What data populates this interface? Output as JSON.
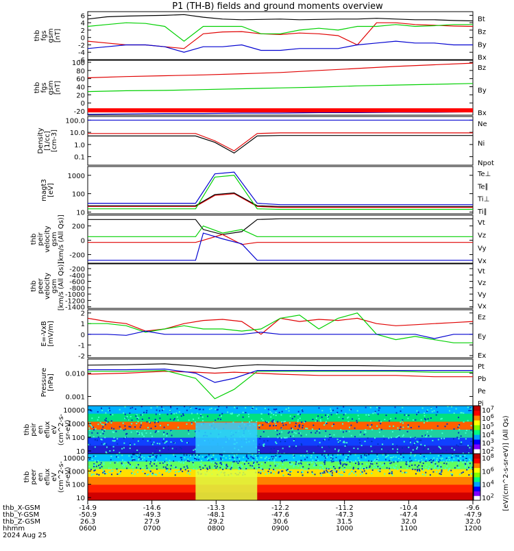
{
  "title": "P1 (TH-B) fields and ground moments overview",
  "colors": {
    "black": "#000000",
    "red": "#e00000",
    "green": "#00d000",
    "blue": "#0000d0"
  },
  "chart_data": [
    {
      "id": "fgs",
      "type": "line",
      "ylabel": [
        "thb",
        "fgs",
        "gsm",
        "[nT]"
      ],
      "yticks": [
        "6",
        "4",
        "2",
        "0",
        "-2",
        "-4",
        "-6"
      ],
      "ylim": [
        -6,
        7
      ],
      "scale": "linear",
      "x": [
        0,
        0.05,
        0.1,
        0.15,
        0.2,
        0.25,
        0.3,
        0.35,
        0.4,
        0.45,
        0.5,
        0.55,
        0.6,
        0.65,
        0.7,
        0.75,
        0.8,
        0.85,
        0.9,
        0.95,
        1
      ],
      "series": [
        {
          "name": "Bt",
          "color": "black",
          "values": [
            5.0,
            5.6,
            5.8,
            5.9,
            6.0,
            6.2,
            5.5,
            5.0,
            4.8,
            4.9,
            5.0,
            4.8,
            4.9,
            5.0,
            5.0,
            5.2,
            5.0,
            4.8,
            4.8,
            4.6,
            4.5
          ]
        },
        {
          "name": "Bz",
          "color": "red",
          "values": [
            -1.0,
            -1.5,
            -2.0,
            -2.0,
            -2.5,
            -3.0,
            1.0,
            1.5,
            1.6,
            1.0,
            0.8,
            1.2,
            1.0,
            0.5,
            -2.0,
            4.0,
            4.0,
            3.5,
            3.3,
            3.1,
            3.0
          ]
        },
        {
          "name": "By",
          "color": "green",
          "values": [
            3.0,
            3.5,
            4.0,
            3.8,
            3.0,
            -1.0,
            3.0,
            3.0,
            3.0,
            1.0,
            1.0,
            2.0,
            2.5,
            2.0,
            3.0,
            3.0,
            3.5,
            3.0,
            3.2,
            3.5,
            3.5
          ]
        },
        {
          "name": "Bx",
          "color": "blue",
          "values": [
            -3.0,
            -2.5,
            -2.0,
            -2.0,
            -2.5,
            -4.0,
            -2.5,
            -2.5,
            -2.0,
            -3.5,
            -3.5,
            -3.0,
            -3.0,
            -3.0,
            -2.0,
            -1.5,
            -1.0,
            -1.5,
            -1.5,
            -2.0,
            -2.0
          ]
        }
      ]
    },
    {
      "id": "fgs-big",
      "type": "line",
      "ylabel": [
        "thb",
        "fgs",
        "gsm",
        "[nT]"
      ],
      "yticks": [
        "100",
        "80",
        "60",
        "40",
        "20",
        "0",
        "-20"
      ],
      "ylim": [
        -30,
        105
      ],
      "scale": "linear",
      "x": [
        0,
        0.1,
        0.2,
        0.3,
        0.4,
        0.5,
        0.6,
        0.7,
        0.8,
        0.9,
        1
      ],
      "series": [
        {
          "name": "Bz",
          "color": "red",
          "values": [
            62,
            65,
            67,
            69,
            72,
            75,
            80,
            85,
            90,
            94,
            98
          ]
        },
        {
          "name": "By",
          "color": "green",
          "values": [
            28,
            30,
            31,
            33,
            35,
            37,
            39,
            42,
            44,
            46,
            48
          ]
        },
        {
          "name": "Bx",
          "color": "blue",
          "values": [
            -28,
            -27,
            -26,
            -26,
            -25,
            -25,
            -24,
            -24,
            -23,
            -23,
            -22
          ]
        }
      ]
    },
    {
      "id": "density",
      "type": "line",
      "ylabel": [
        "Density",
        "[1/cc]",
        "[cm-3]"
      ],
      "yticks": [
        "100.0",
        "10.0",
        "1.0",
        "0.1"
      ],
      "ylim": [
        0.02,
        200
      ],
      "scale": "log",
      "x": [
        0,
        0.1,
        0.2,
        0.28,
        0.33,
        0.38,
        0.44,
        0.5,
        0.6,
        0.7,
        0.8,
        0.9,
        1
      ],
      "series": [
        {
          "name": "Ne",
          "color": "red",
          "values": [
            8,
            8,
            8,
            8,
            2,
            0.3,
            8,
            9,
            9,
            9,
            9,
            9,
            9
          ]
        },
        {
          "name": "Ni",
          "color": "black",
          "values": [
            5,
            5,
            5,
            5,
            1.5,
            0.2,
            5,
            5.5,
            5.5,
            5.5,
            5.5,
            5.5,
            5.5
          ]
        },
        {
          "name": "Npot",
          "color": "blue",
          "values": [
            100,
            100,
            100,
            100,
            100,
            100,
            100,
            100,
            100,
            100,
            100,
            100,
            100
          ]
        }
      ]
    },
    {
      "id": "temperature",
      "type": "line",
      "ylabel": [
        "magt3",
        "[eV]"
      ],
      "yticks": [
        "1000",
        "100",
        "10"
      ],
      "ylim": [
        8,
        3000
      ],
      "scale": "log",
      "x": [
        0,
        0.1,
        0.2,
        0.28,
        0.33,
        0.38,
        0.44,
        0.5,
        0.6,
        0.7,
        0.8,
        0.9,
        1
      ],
      "series": [
        {
          "name": "Te⊥",
          "color": "red",
          "values": [
            20,
            20,
            20,
            20,
            80,
            100,
            20,
            18,
            18,
            18,
            18,
            18,
            18
          ]
        },
        {
          "name": "Te∥",
          "color": "black",
          "values": [
            22,
            22,
            22,
            22,
            90,
            110,
            22,
            20,
            20,
            20,
            20,
            20,
            20
          ]
        },
        {
          "name": "Ti⊥",
          "color": "blue",
          "values": [
            30,
            30,
            30,
            30,
            1200,
            1500,
            30,
            25,
            25,
            25,
            25,
            25,
            25
          ]
        },
        {
          "name": "Ti∥",
          "color": "green",
          "values": [
            15,
            15,
            15,
            15,
            800,
            1000,
            15,
            14,
            14,
            14,
            14,
            14,
            14
          ]
        }
      ]
    },
    {
      "id": "peir-velocity",
      "type": "line",
      "ylabel": [
        "thb",
        "peir",
        "velocity",
        "gsm",
        "[km/s (All Qs)]"
      ],
      "yticks": [
        "200",
        "0",
        "-200"
      ],
      "ylim": [
        -320,
        350
      ],
      "scale": "linear",
      "x": [
        0,
        0.1,
        0.2,
        0.28,
        0.3,
        0.35,
        0.4,
        0.44,
        0.5,
        0.6,
        0.7,
        0.8,
        0.9,
        1
      ],
      "series": [
        {
          "name": "Vt",
          "color": "black",
          "values": [
            290,
            290,
            290,
            290,
            150,
            80,
            120,
            290,
            300,
            300,
            300,
            300,
            300,
            300
          ]
        },
        {
          "name": "Vz",
          "color": "red",
          "values": [
            -30,
            -30,
            -30,
            -30,
            0,
            80,
            -60,
            -30,
            -30,
            -30,
            -30,
            -30,
            -30,
            -30
          ]
        },
        {
          "name": "Vy",
          "color": "green",
          "values": [
            50,
            50,
            50,
            50,
            200,
            100,
            150,
            50,
            50,
            50,
            50,
            50,
            50,
            50
          ]
        },
        {
          "name": "Vx",
          "color": "blue",
          "values": [
            -280,
            -280,
            -280,
            -280,
            100,
            20,
            -50,
            -280,
            -280,
            -280,
            -280,
            -280,
            -280,
            -280
          ]
        }
      ]
    },
    {
      "id": "peer-velocity",
      "type": "line",
      "ylabel": [
        "thb",
        "peer",
        "velocity",
        "gsm",
        "[km/s (All Qs)]"
      ],
      "yticks": [
        "-200",
        "-400",
        "-600",
        "-800",
        "-1000",
        "-1200",
        "-1400"
      ],
      "ylim": [
        -1450,
        -50
      ],
      "scale": "linear",
      "x": [],
      "series": [
        {
          "name": "Vt",
          "color": "black",
          "values": []
        },
        {
          "name": "Vz",
          "color": "red",
          "values": []
        },
        {
          "name": "Vy",
          "color": "green",
          "values": []
        },
        {
          "name": "Vx",
          "color": "blue",
          "values": []
        }
      ]
    },
    {
      "id": "efield",
      "type": "line",
      "ylabel": [
        "E=-VxB",
        "[mV/m]"
      ],
      "yticks": [
        "2",
        "1",
        "0",
        "-1",
        "-2"
      ],
      "ylim": [
        -2.2,
        2.3
      ],
      "scale": "linear",
      "x": [
        0,
        0.05,
        0.1,
        0.15,
        0.2,
        0.25,
        0.3,
        0.35,
        0.4,
        0.45,
        0.5,
        0.55,
        0.6,
        0.65,
        0.7,
        0.75,
        0.8,
        0.85,
        0.9,
        0.95,
        1
      ],
      "series": [
        {
          "name": "Ez",
          "color": "red",
          "values": [
            1.5,
            1.2,
            1.0,
            0.3,
            0.5,
            1.0,
            1.3,
            1.4,
            1.2,
            0.0,
            1.5,
            1.2,
            1.4,
            1.3,
            1.5,
            1.0,
            0.8,
            0.9,
            1.0,
            1.1,
            1.2
          ]
        },
        {
          "name": "Ey",
          "color": "green",
          "values": [
            1.0,
            1.0,
            0.8,
            0.2,
            0.5,
            0.8,
            0.5,
            0.5,
            0.3,
            0.5,
            1.5,
            1.8,
            0.5,
            1.5,
            2.0,
            0.0,
            -0.5,
            -0.2,
            -0.5,
            -0.8,
            -0.8
          ]
        },
        {
          "name": "Ex",
          "color": "blue",
          "values": [
            0.0,
            0.0,
            -0.1,
            0.3,
            0.0,
            0.0,
            0.0,
            0.0,
            0.0,
            0.2,
            0.0,
            0.0,
            0.0,
            0.0,
            0.0,
            0.0,
            0.0,
            0.0,
            -0.4,
            0.0,
            0.0
          ]
        }
      ]
    },
    {
      "id": "pressure",
      "type": "line",
      "ylabel": [
        "Pressure",
        "[nPa]"
      ],
      "yticks": [
        "0.010",
        "0.001"
      ],
      "ylim": [
        0.0004,
        0.04
      ],
      "scale": "log",
      "x": [
        0,
        0.1,
        0.2,
        0.28,
        0.33,
        0.38,
        0.44,
        0.5,
        0.6,
        0.7,
        0.8,
        0.9,
        1
      ],
      "series": [
        {
          "name": "Pt",
          "color": "black",
          "values": [
            0.022,
            0.023,
            0.025,
            0.02,
            0.016,
            0.02,
            0.023,
            0.022,
            0.021,
            0.021,
            0.02,
            0.02,
            0.02
          ]
        },
        {
          "name": "Pb",
          "color": "red",
          "values": [
            0.009,
            0.01,
            0.012,
            0.011,
            0.01,
            0.011,
            0.01,
            0.009,
            0.008,
            0.008,
            0.008,
            0.007,
            0.007
          ]
        },
        {
          "name": "Pe",
          "color": "green",
          "values": [
            0.012,
            0.012,
            0.013,
            0.006,
            0.0008,
            0.002,
            0.012,
            0.012,
            0.012,
            0.012,
            0.012,
            0.011,
            0.011
          ]
        },
        {
          "name": "Pi",
          "color": "blue",
          "values": [
            0.014,
            0.014,
            0.015,
            0.01,
            0.004,
            0.006,
            0.013,
            0.013,
            0.013,
            0.013,
            0.013,
            0.013,
            0.013
          ]
        }
      ]
    },
    {
      "id": "peir-spectrogram",
      "type": "heatmap",
      "ylabel": [
        "thb",
        "peir",
        "en",
        "eflux",
        "eV",
        "(cm^2-s-",
        "sr-eV)"
      ],
      "yticks": [
        "10000",
        "1000",
        "100",
        "10"
      ],
      "colorbar_ticks": [
        "10^7",
        "10^6",
        "10^5",
        "10^4",
        "10^3",
        "10^2"
      ]
    },
    {
      "id": "peer-spectrogram",
      "type": "heatmap",
      "ylabel": [
        "thb",
        "peer",
        "en",
        "eflux",
        "eV",
        "(cm^2-s-",
        "sr-eV)"
      ],
      "yticks": [
        "10000",
        "1000",
        "100",
        "10"
      ],
      "colorbar_ticks": [
        "10^8",
        "10^6",
        "10^4",
        "10^2"
      ],
      "colorbar_label": "[eV/(cm^2-s-sr-eV)] (All Qs)"
    }
  ],
  "xaxis": {
    "rows": [
      {
        "label": "thb_X-GSM",
        "values": [
          "-14.9",
          "-14.6",
          "-13.3",
          "-12.2",
          "-11.2",
          "-10.4",
          "-9.6"
        ]
      },
      {
        "label": "thb_Y-GSM",
        "values": [
          "-50.9",
          "-49.3",
          "-48.1",
          "-47.6",
          "-47.3",
          "-47.4",
          "-47.9"
        ]
      },
      {
        "label": "thb_Z-GSM",
        "values": [
          "26.3",
          "27.9",
          "29.2",
          "30.6",
          "31.5",
          "32.0",
          "32.0"
        ]
      },
      {
        "label": "hhmm",
        "values": [
          "0600",
          "0700",
          "0800",
          "0900",
          "1000",
          "1100",
          "1200"
        ]
      }
    ],
    "date": "2024 Aug 25"
  }
}
